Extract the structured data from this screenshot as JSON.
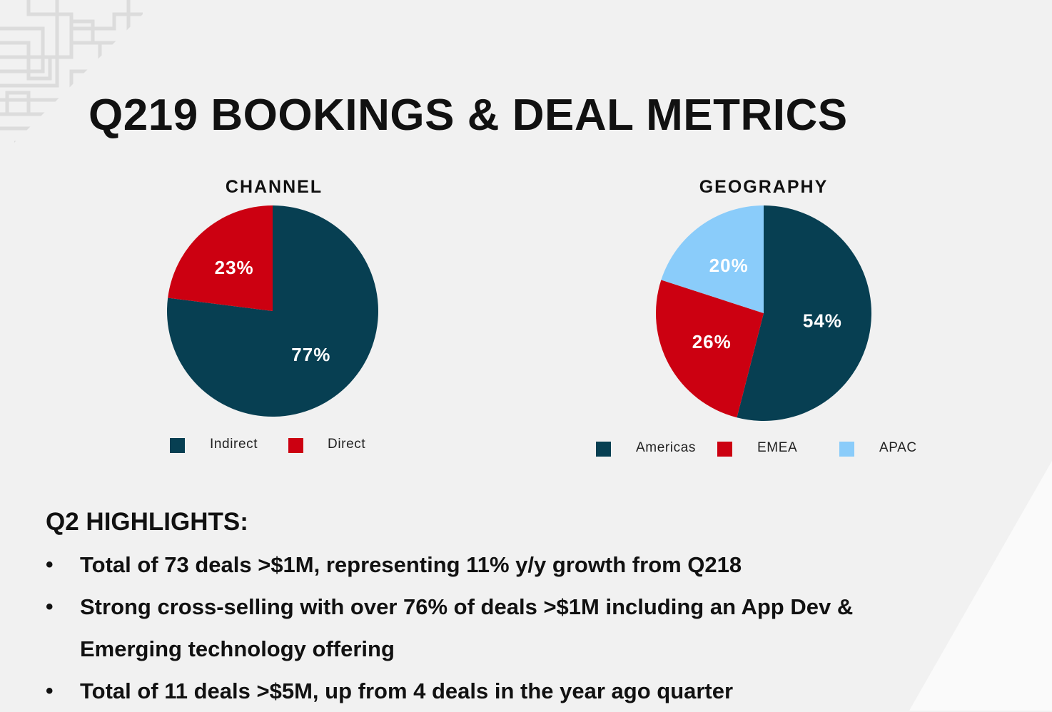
{
  "slide": {
    "title": "Q219 BOOKINGS & DEAL METRICS"
  },
  "colors": {
    "background": "#f1f1f1",
    "dark_teal": "#073f52",
    "red": "#cc0011",
    "light_blue": "#8accfa"
  },
  "chart_data": [
    {
      "type": "pie",
      "title": "CHANNEL",
      "categories": [
        "Indirect",
        "Direct"
      ],
      "values": [
        77,
        23
      ],
      "labels": [
        "77%",
        "23%"
      ],
      "colors": [
        "#073f52",
        "#cc0011"
      ],
      "legend_placement": "bottom"
    },
    {
      "type": "pie",
      "title": "GEOGRAPHY",
      "categories": [
        "Americas",
        "EMEA",
        "APAC"
      ],
      "values": [
        54,
        26,
        20
      ],
      "labels": [
        "54%",
        "26%",
        "20%"
      ],
      "colors": [
        "#073f52",
        "#cc0011",
        "#8accfa"
      ],
      "legend_placement": "bottom"
    }
  ],
  "highlights": {
    "heading": "Q2 HIGHLIGHTS:",
    "bullet_symbol": "•",
    "items": [
      "Total of 73 deals >$1M, representing 11% y/y growth from Q218",
      "Strong cross-selling with over 76% of deals >$1M including an App Dev & Emerging technology offering",
      "Total of 11 deals >$5M, up from 4 deals in the year ago quarter"
    ]
  }
}
